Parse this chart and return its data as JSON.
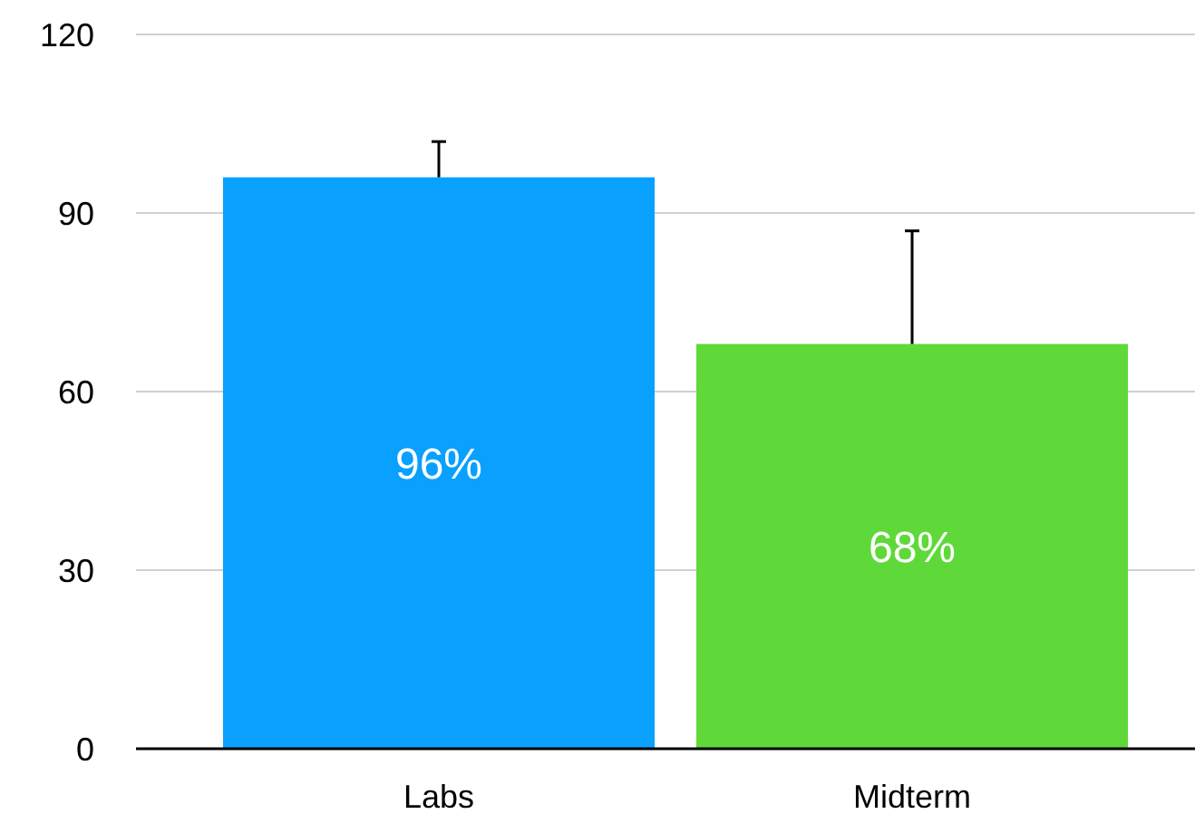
{
  "chart_data": {
    "type": "bar",
    "categories": [
      "Labs",
      "Midterm"
    ],
    "values": [
      96,
      68
    ],
    "colors": [
      "#0aa0fe",
      "#5fd93a"
    ],
    "errors": [
      [
        96,
        102
      ],
      [
        68,
        87
      ]
    ],
    "value_labels": [
      "96%",
      "68%"
    ],
    "ylim": [
      0,
      120
    ],
    "yticks": [
      0,
      30,
      60,
      90,
      120
    ],
    "grid": "y"
  }
}
